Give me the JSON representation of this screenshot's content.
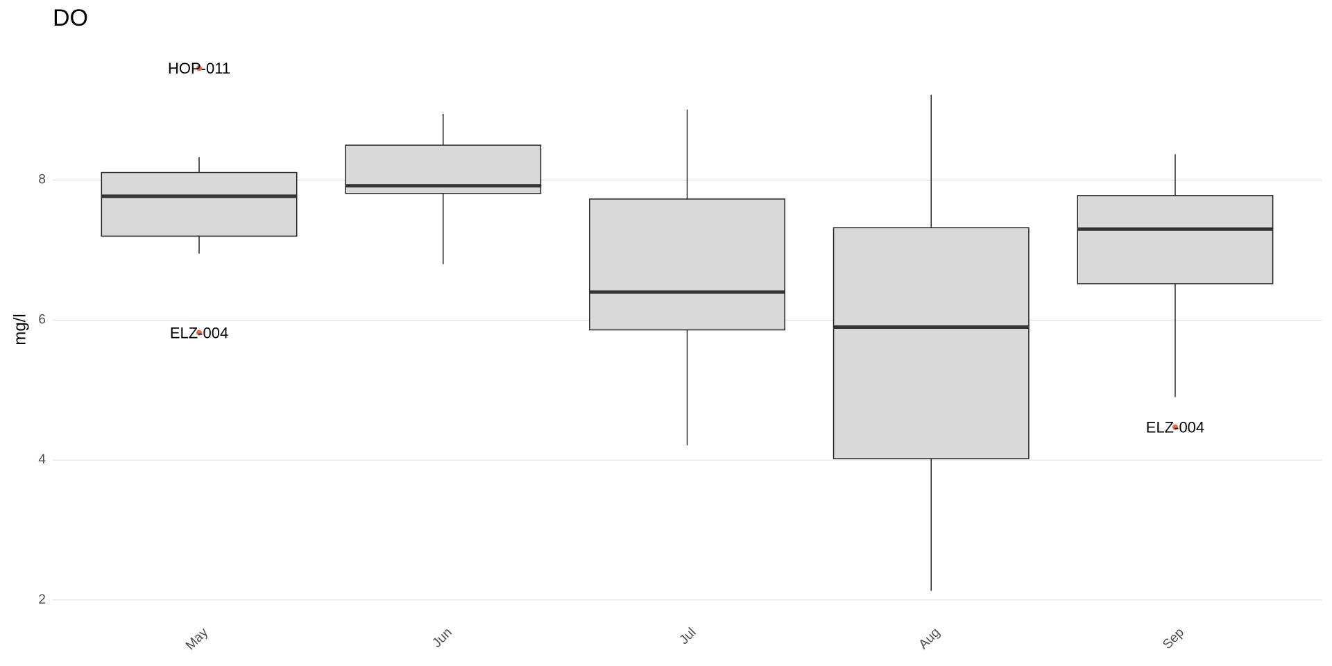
{
  "chart_data": {
    "type": "box",
    "title": "DO",
    "y_label": "mg/l",
    "categories": [
      "May",
      "Jun",
      "Jul",
      "Aug",
      "Sep"
    ],
    "boxes": [
      {
        "low": 6.95,
        "q1": 7.2,
        "median": 7.77,
        "q3": 8.11,
        "high": 8.33
      },
      {
        "low": 6.8,
        "q1": 7.81,
        "median": 7.92,
        "q3": 8.5,
        "high": 8.95
      },
      {
        "low": 4.21,
        "q1": 5.86,
        "median": 6.4,
        "q3": 7.73,
        "high": 9.01
      },
      {
        "low": 2.13,
        "q1": 4.02,
        "median": 5.9,
        "q3": 7.32,
        "high": 9.22
      },
      {
        "low": 4.9,
        "q1": 6.52,
        "median": 7.3,
        "q3": 7.78,
        "high": 8.37
      }
    ],
    "box_color": "#d9d9d9",
    "outliers": [
      {
        "category": "May",
        "value": 9.6,
        "label": "HOP-011"
      },
      {
        "category": "May",
        "value": 5.82,
        "label": "ELZ-004"
      },
      {
        "category": "Sep",
        "value": 4.47,
        "label": "ELZ-004"
      }
    ],
    "outlier_color": "#e8694a",
    "ylim": [
      1.76,
      9.97
    ],
    "yticks": [
      2,
      4,
      6,
      8
    ],
    "grid": true
  }
}
